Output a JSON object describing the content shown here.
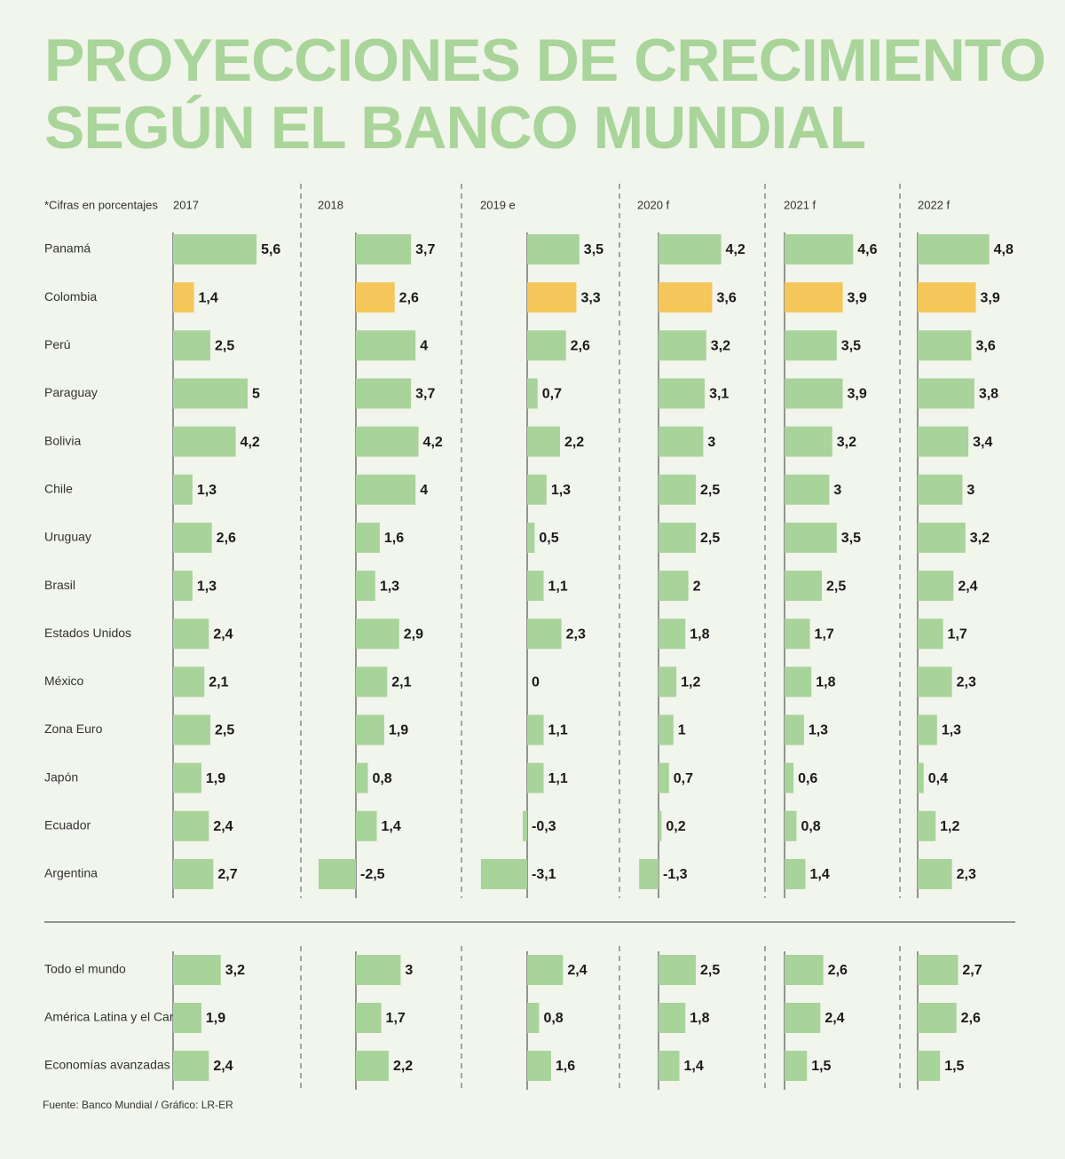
{
  "chart_data": {
    "type": "bar",
    "title": [
      "PROYECCIONES DE CRECIMIENTO",
      "SEGÚN EL BANCO MUNDIAL"
    ],
    "note": "*Cifras en porcentajes",
    "source": "Fuente: Banco Mundial / Gráfico: LR-ER",
    "columns": [
      "2017",
      "2018",
      "2019 e",
      "2020 f",
      "2021 f",
      "2022 f"
    ],
    "highlight": "Colombia",
    "colors": {
      "bar": "#a8d39a",
      "highlight": "#f5c65a",
      "title": "#a9d49a",
      "background": "#f1f5ec"
    },
    "countries": [
      {
        "name": "Panamá",
        "values": [
          5.6,
          3.7,
          3.5,
          4.2,
          4.6,
          4.8
        ],
        "labels": [
          "5,6",
          "3,7",
          "3,5",
          "4,2",
          "4,6",
          "4,8"
        ]
      },
      {
        "name": "Colombia",
        "values": [
          1.4,
          2.6,
          3.3,
          3.6,
          3.9,
          3.9
        ],
        "labels": [
          "1,4",
          "2,6",
          "3,3",
          "3,6",
          "3,9",
          "3,9"
        ]
      },
      {
        "name": "Perú",
        "values": [
          2.5,
          4,
          2.6,
          3.2,
          3.5,
          3.6
        ],
        "labels": [
          "2,5",
          "4",
          "2,6",
          "3,2",
          "3,5",
          "3,6"
        ]
      },
      {
        "name": "Paraguay",
        "values": [
          5,
          3.7,
          0.7,
          3.1,
          3.9,
          3.8
        ],
        "labels": [
          "5",
          "3,7",
          "0,7",
          "3,1",
          "3,9",
          "3,8"
        ]
      },
      {
        "name": "Bolivia",
        "values": [
          4.2,
          4.2,
          2.2,
          3,
          3.2,
          3.4
        ],
        "labels": [
          "4,2",
          "4,2",
          "2,2",
          "3",
          "3,2",
          "3,4"
        ]
      },
      {
        "name": "Chile",
        "values": [
          1.3,
          4,
          1.3,
          2.5,
          3,
          3
        ],
        "labels": [
          "1,3",
          "4",
          "1,3",
          "2,5",
          "3",
          "3"
        ]
      },
      {
        "name": "Uruguay",
        "values": [
          2.6,
          1.6,
          0.5,
          2.5,
          3.5,
          3.2
        ],
        "labels": [
          "2,6",
          "1,6",
          "0,5",
          "2,5",
          "3,5",
          "3,2"
        ]
      },
      {
        "name": "Brasil",
        "values": [
          1.3,
          1.3,
          1.1,
          2,
          2.5,
          2.4
        ],
        "labels": [
          "1,3",
          "1,3",
          "1,1",
          "2",
          "2,5",
          "2,4"
        ]
      },
      {
        "name": "Estados Unidos",
        "values": [
          2.4,
          2.9,
          2.3,
          1.8,
          1.7,
          1.7
        ],
        "labels": [
          "2,4",
          "2,9",
          "2,3",
          "1,8",
          "1,7",
          "1,7"
        ]
      },
      {
        "name": "México",
        "values": [
          2.1,
          2.1,
          0,
          1.2,
          1.8,
          2.3
        ],
        "labels": [
          "2,1",
          "2,1",
          "0",
          "1,2",
          "1,8",
          "2,3"
        ]
      },
      {
        "name": "Zona Euro",
        "values": [
          2.5,
          1.9,
          1.1,
          1,
          1.3,
          1.3
        ],
        "labels": [
          "2,5",
          "1,9",
          "1,1",
          "1",
          "1,3",
          "1,3"
        ]
      },
      {
        "name": "Japón",
        "values": [
          1.9,
          0.8,
          1.1,
          0.7,
          0.6,
          0.4
        ],
        "labels": [
          "1,9",
          "0,8",
          "1,1",
          "0,7",
          "0,6",
          "0,4"
        ]
      },
      {
        "name": "Ecuador",
        "values": [
          2.4,
          1.4,
          -0.3,
          0.2,
          0.8,
          1.2
        ],
        "labels": [
          "2,4",
          "1,4",
          "-0,3",
          "0,2",
          "0,8",
          "1,2"
        ]
      },
      {
        "name": "Argentina",
        "values": [
          2.7,
          -2.5,
          -3.1,
          -1.3,
          1.4,
          2.3
        ],
        "labels": [
          "2,7",
          "-2,5",
          "-3,1",
          "-1,3",
          "1,4",
          "2,3"
        ]
      }
    ],
    "regions": [
      {
        "name": "Todo el mundo",
        "values": [
          3.2,
          3,
          2.4,
          2.5,
          2.6,
          2.7
        ],
        "labels": [
          "3,2",
          "3",
          "2,4",
          "2,5",
          "2,6",
          "2,7"
        ]
      },
      {
        "name": "América Latina y el Caribe",
        "values": [
          1.9,
          1.7,
          0.8,
          1.8,
          2.4,
          2.6
        ],
        "labels": [
          "1,9",
          "1,7",
          "0,8",
          "1,8",
          "2,4",
          "2,6"
        ]
      },
      {
        "name": "Economías avanzadas",
        "values": [
          2.4,
          2.2,
          1.6,
          1.4,
          1.5,
          1.5
        ],
        "labels": [
          "2,4",
          "2,2",
          "1,6",
          "1,4",
          "1,5",
          "1,5"
        ]
      }
    ]
  }
}
